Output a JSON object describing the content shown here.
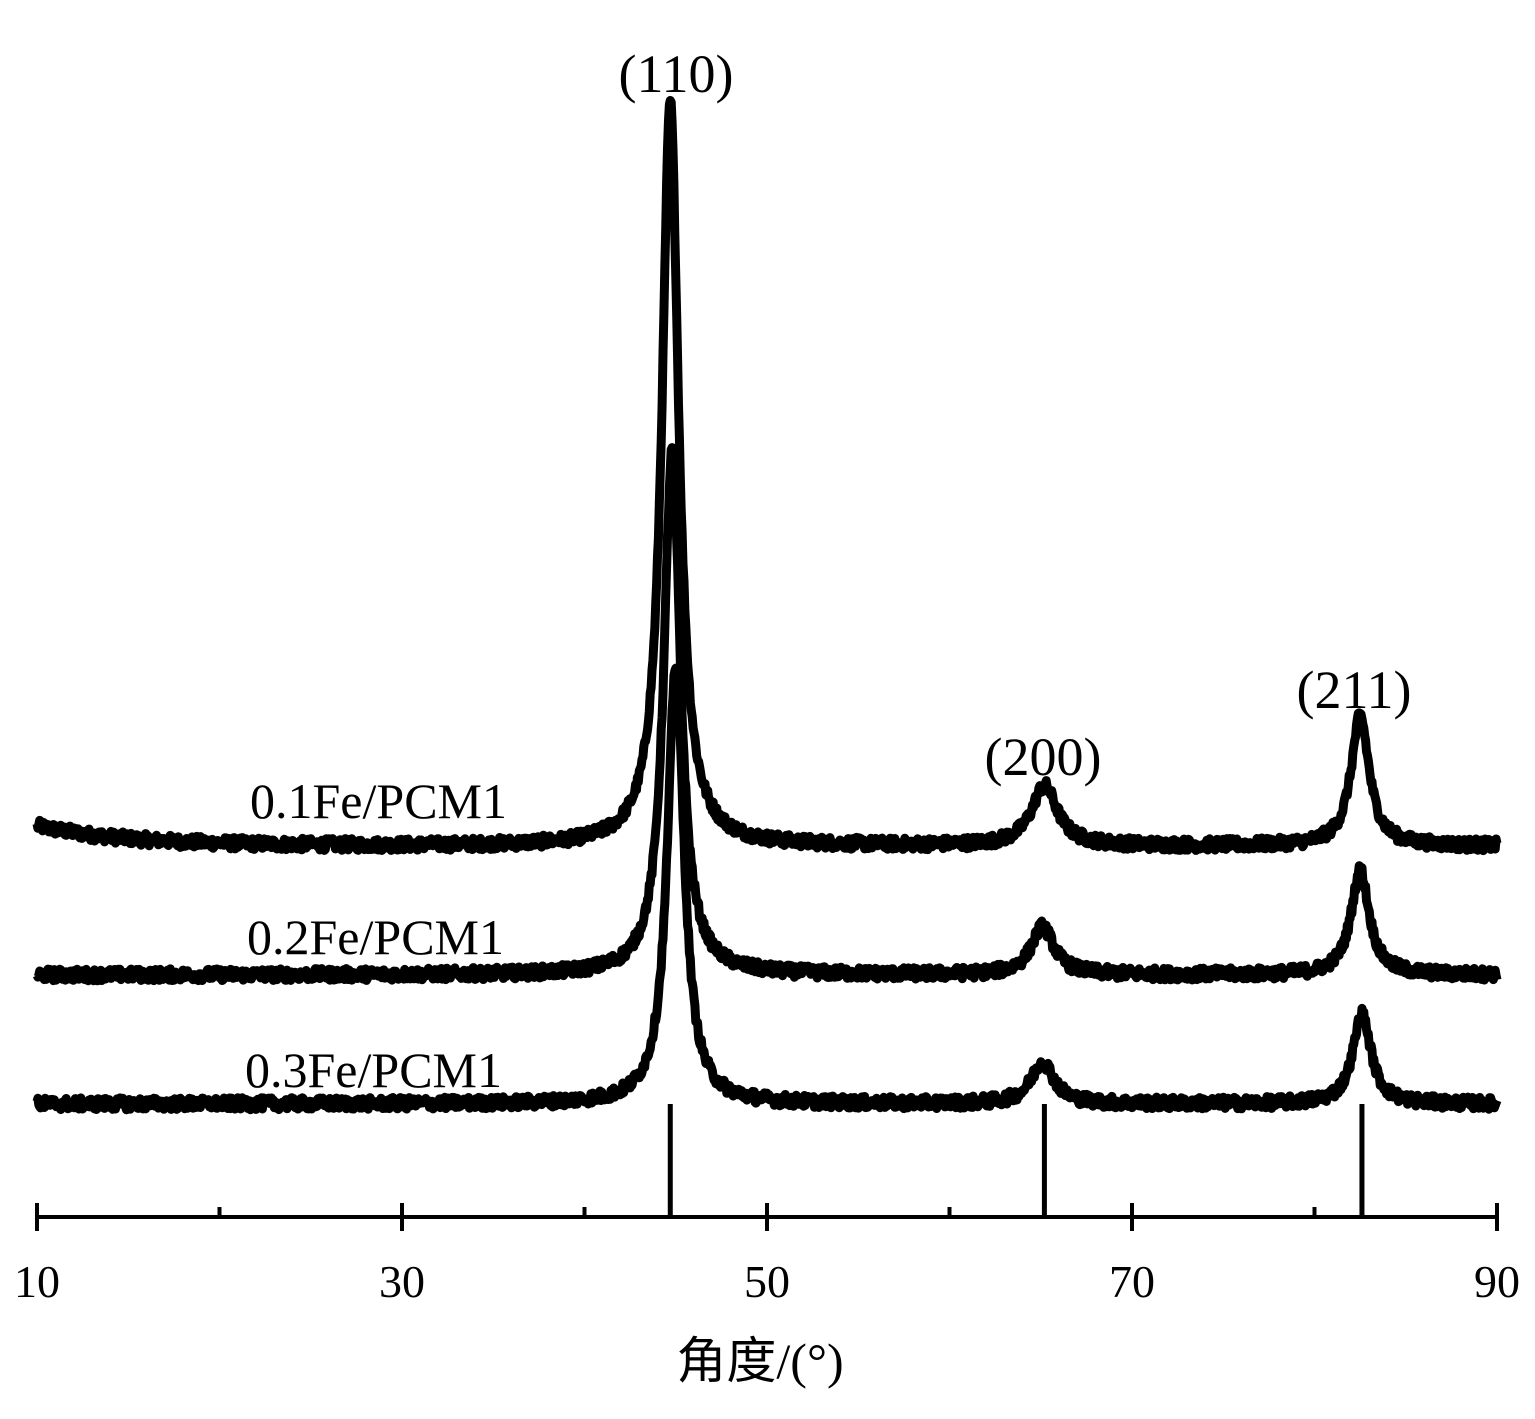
{
  "chart_data": {
    "type": "line",
    "title": "",
    "xlabel": "角度/(°)",
    "ylabel": "",
    "xlim": [
      10,
      90
    ],
    "x_ticks_major": [
      10,
      30,
      50,
      70,
      90
    ],
    "x_ticks_minor": [
      20,
      40,
      60,
      80
    ],
    "x_tick_labels": [
      "10",
      "30",
      "50",
      "70",
      "90"
    ],
    "y_axis_shown": false,
    "grid": false,
    "legend": "none (series labeled inline above each trace)",
    "line_color": "#000000",
    "series": [
      {
        "name": "0.1Fe/PCM1",
        "baseline": 84,
        "low_angle_rise": 20,
        "peaks": [
          {
            "x": 44.7,
            "height": 745,
            "width": 0.55
          },
          {
            "x": 65.2,
            "height": 60,
            "width": 0.85
          },
          {
            "x": 82.5,
            "height": 130,
            "width": 0.6
          }
        ]
      },
      {
        "name": "0.2Fe/PCM1",
        "baseline": 70,
        "low_angle_rise": 0,
        "peaks": [
          {
            "x": 44.8,
            "height": 525,
            "width": 0.55
          },
          {
            "x": 65.1,
            "height": 48,
            "width": 0.75
          },
          {
            "x": 82.5,
            "height": 105,
            "width": 0.6
          }
        ]
      },
      {
        "name": "0.3Fe/PCM1",
        "baseline": 56,
        "low_angle_rise": 0,
        "peaks": [
          {
            "x": 45.0,
            "height": 440,
            "width": 0.55
          },
          {
            "x": 65.1,
            "height": 42,
            "width": 0.75
          },
          {
            "x": 82.6,
            "height": 90,
            "width": 0.6
          }
        ]
      }
    ],
    "reference_lines": [
      {
        "x": 44.7,
        "top": 56
      },
      {
        "x": 65.2,
        "top": 56
      },
      {
        "x": 82.6,
        "top": 56
      }
    ],
    "peak_annotations": [
      {
        "label": "(110)",
        "x": 44.7
      },
      {
        "label": "(200)",
        "x": 65.2
      },
      {
        "label": "(211)",
        "x": 82.5
      }
    ]
  }
}
